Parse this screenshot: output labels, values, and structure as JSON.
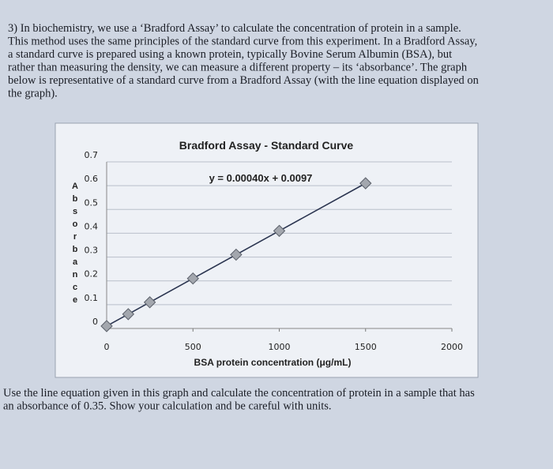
{
  "question_lines": [
    "3) In biochemistry, we use a ‘Bradford Assay’ to calculate the concentration of protein in a sample.",
    "This method uses the same principles of the standard curve from this experiment.  In a Bradford Assay,",
    "a standard curve is prepared using a known protein, typically Bovine Serum Albumin (BSA), but",
    "rather than measuring the density, we can measure a different property – its ‘absorbance’.  The graph",
    "below is representative of a standard curve from a Bradford Assay (with the line equation displayed on",
    "the graph)."
  ],
  "chart_data": {
    "type": "line",
    "title": "Bradford Assay - Standard Curve",
    "annotation": "y = 0.00040x + 0.0097",
    "xlabel": "BSA protein concentration (μg/mL)",
    "ylabel": "Absorbance",
    "x": [
      0,
      125,
      250,
      500,
      750,
      1000,
      1500
    ],
    "series": [
      {
        "name": "Absorbance",
        "color": "#2b3550",
        "values": [
          0.01,
          0.06,
          0.11,
          0.21,
          0.31,
          0.41,
          0.61
        ]
      }
    ],
    "xlim": [
      0,
      2000
    ],
    "xticks": [
      0,
      500,
      1000,
      1500,
      2000
    ],
    "ylim": [
      0,
      0.7
    ],
    "yticks": [
      0,
      0.1,
      0.2,
      0.3,
      0.4,
      0.5,
      0.6,
      0.7
    ],
    "grid": true
  },
  "prompt_lines": [
    "Use the line equation given in this graph and calculate the concentration of protein in a sample that has",
    "an absorbance of 0.35.  Show your calculation and be careful with units."
  ]
}
